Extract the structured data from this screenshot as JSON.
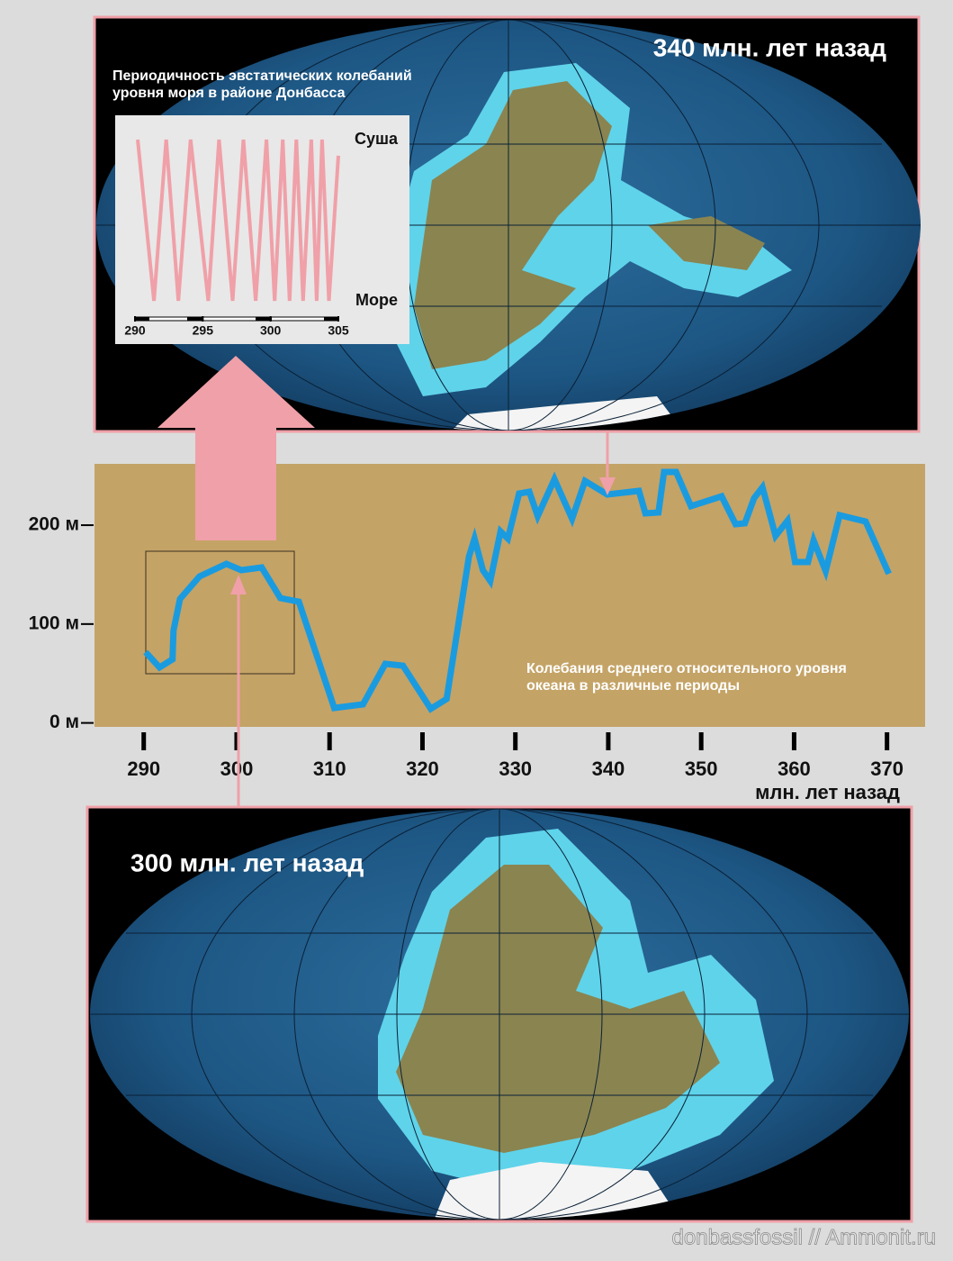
{
  "maps": [
    {
      "title": "340 млн. лет назад"
    },
    {
      "title": "300 млн. лет назад"
    }
  ],
  "watermark": "donbassfossil // Ammonit.ru",
  "chart_data": [
    {
      "type": "line",
      "color": "#1a9be0",
      "x_label": "млн. лет назад",
      "annotation": [
        "Колебания среднего относительного уровня",
        "океана в различные периоды"
      ],
      "x": [
        290.2,
        291.7,
        293.1,
        293.2,
        293.9,
        296.0,
        298.9,
        300.5,
        302.7,
        304.7,
        306.7,
        310.5,
        313.6,
        316.0,
        317.9,
        320.9,
        322.6,
        325.0,
        325.6,
        326.5,
        327.3,
        328.4,
        329.2,
        330.4,
        331.5,
        332.4,
        334.2,
        336.1,
        337.5,
        339.9,
        343.3,
        344.0,
        345.4,
        346.0,
        347.3,
        348.9,
        352.2,
        353.7,
        354.7,
        355.7,
        356.6,
        358.0,
        359.3,
        360.1,
        361.5,
        362.1,
        363.4,
        364.9,
        367.7,
        370.2
      ],
      "values": [
        71.6,
        56.1,
        64.3,
        93.5,
        125.4,
        148.1,
        160.9,
        154.5,
        157.2,
        126.3,
        122.6,
        15.1,
        18.8,
        59.8,
        57.9,
        14.2,
        24.2,
        168.2,
        186.4,
        154.5,
        143.6,
        193.7,
        186.4,
        232.0,
        233.8,
        209.2,
        246.5,
        206.4,
        244.7,
        231.0,
        234.7,
        211.9,
        212.8,
        253.8,
        253.8,
        219.2,
        229.2,
        201.0,
        201.9,
        227.4,
        238.3,
        189.1,
        204.6,
        162.7,
        162.7,
        184.6,
        153.6,
        210.1,
        203.7,
        150.9
      ],
      "xlim": [
        284.7,
        374.1
      ],
      "ylim": [
        -4,
        262
      ],
      "xticks": [
        290,
        300,
        310,
        320,
        330,
        340,
        350,
        360,
        370
      ],
      "yticks": [
        {
          "value": 0,
          "label": "0 м"
        },
        {
          "value": 100,
          "label": "100 м"
        },
        {
          "value": 200,
          "label": "200 м"
        }
      ]
    },
    {
      "type": "line",
      "color": "#f0a0a8",
      "title": [
        "Периодичность эвстатических колебаний",
        "уровня моря в районе Донбасса"
      ],
      "x": [
        290.2,
        291.4,
        292.3,
        293.2,
        294.1,
        295.4,
        296.2,
        297.2,
        298.0,
        298.9,
        299.7,
        300.3,
        300.9,
        301.4,
        301.9,
        302.4,
        303.0,
        303.4,
        303.8,
        304.3,
        305.0
      ],
      "values": [
        1,
        0,
        1,
        0,
        1,
        0,
        1,
        0,
        1,
        0,
        1,
        0,
        1,
        0,
        1,
        0,
        1,
        0,
        1,
        0,
        0.9
      ],
      "xlim": [
        290,
        305
      ],
      "ylim": [
        -0.05,
        1.05
      ],
      "xticks": [
        290,
        295,
        300,
        305
      ],
      "yticks": [
        {
          "value": 1,
          "label": "Суша"
        },
        {
          "value": 0,
          "label": "Море"
        }
      ]
    }
  ]
}
